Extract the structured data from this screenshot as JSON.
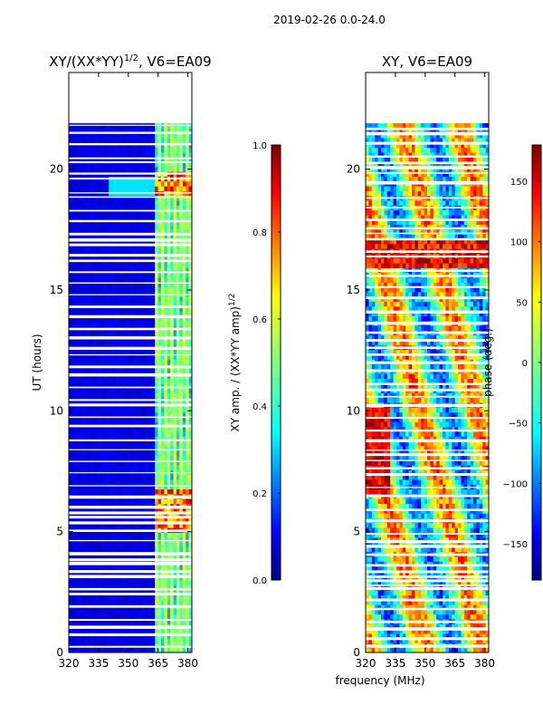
{
  "figure_title": "2019-02-26 0.0-24.0",
  "shared_xlabel": "frequency (MHz)",
  "colors": {
    "jet": [
      "#00007f",
      "#0000ff",
      "#007fff",
      "#00ffff",
      "#7fff7f",
      "#ffff00",
      "#ff7f00",
      "#ff0000",
      "#7f0000"
    ],
    "background": "#ffffff",
    "axis": "#000000"
  },
  "chart_data": [
    {
      "type": "heatmap",
      "title": "XY/(XX*YY)",
      "title_superscript": "1/2",
      "title_suffix": ", V6=EA09",
      "xlabel": "",
      "ylabel": "UT (hours)",
      "xlim": [
        320,
        382
      ],
      "ylim": [
        0,
        24
      ],
      "xticks": [
        "320",
        "335",
        "350",
        "365",
        "380"
      ],
      "xtick_values": [
        320,
        335,
        350,
        365,
        380
      ],
      "yticks": [
        "0",
        "5",
        "10",
        "15",
        "20"
      ],
      "ytick_values": [
        0,
        5,
        10,
        15,
        20
      ],
      "data_coverage_hours": [
        0,
        21.9
      ],
      "colorbar": {
        "label": "XY amp. / (XX*YY amp)",
        "label_superscript": "1/2",
        "range": [
          0,
          1
        ],
        "ticks": [
          "0.0",
          "0.2",
          "0.4",
          "0.6",
          "0.8",
          "1.0"
        ],
        "tick_values": [
          0,
          0.2,
          0.4,
          0.6,
          0.8,
          1.0
        ]
      }
    },
    {
      "type": "heatmap",
      "title": "XY, V6=EA09",
      "xlabel": "",
      "ylabel": "",
      "xlim": [
        320,
        382
      ],
      "ylim": [
        0,
        24
      ],
      "xticks": [
        "320",
        "335",
        "350",
        "365",
        "380"
      ],
      "xtick_values": [
        320,
        335,
        350,
        365,
        380
      ],
      "yticks": [
        "0",
        "5",
        "10",
        "15",
        "20"
      ],
      "ytick_values": [
        0,
        5,
        10,
        15,
        20
      ],
      "data_coverage_hours": [
        0,
        21.9
      ],
      "colorbar": {
        "label": "phase (deg.)",
        "range": [
          -180,
          180
        ],
        "ticks": [
          "−150",
          "−100",
          "−50",
          "0",
          "50",
          "100",
          "150"
        ],
        "tick_values": [
          -150,
          -100,
          -50,
          0,
          50,
          100,
          150
        ]
      }
    }
  ]
}
